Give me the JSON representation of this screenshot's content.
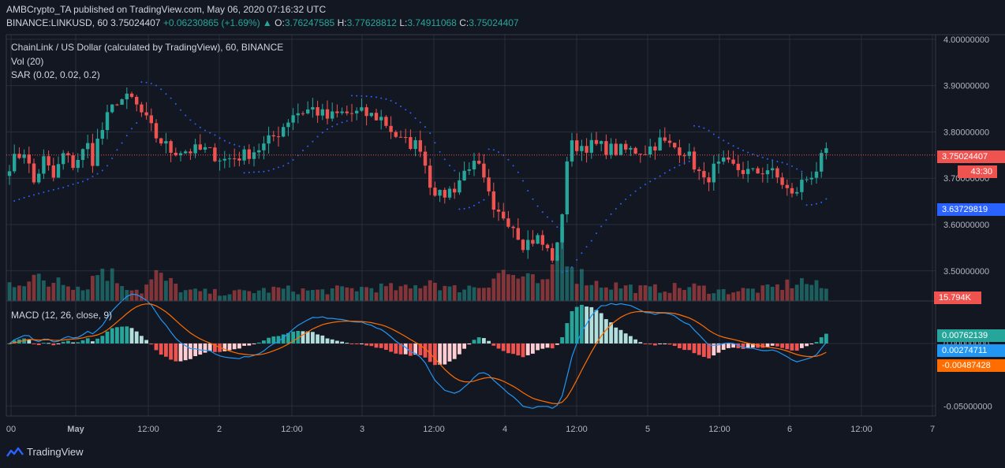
{
  "header": {
    "published": "AMBCrypto_TA published on TradingView.com, May 06, 2020 07:16:32 UTC",
    "symbol": "BINANCE:LINKUSD, 60",
    "last": "3.75024407",
    "change": "+0.06230865 (+1.69%)",
    "o_label": "O:",
    "o": "3.76247585",
    "h_label": "H:",
    "h": "3.77628812",
    "l_label": "L:",
    "l": "3.74911068",
    "c_label": "C:",
    "c": "3.75024407"
  },
  "legend": {
    "title": "ChainLink / US Dollar (calculated by TradingView), 60, BINANCE",
    "vol": "Vol (20)",
    "sar": "SAR (0.02, 0.02, 0.2)",
    "macd": "MACD (12, 26, close, 9)"
  },
  "brand": "TradingView",
  "colors": {
    "up": "#26a69a",
    "down": "#ef5350",
    "macd": "#2196f3",
    "signal": "#ff6d00",
    "bg": "#131722",
    "grid": "#2a2e39"
  },
  "price_tags": {
    "last": "3.75024407",
    "countdown": "43:30",
    "sar": "3.63729819",
    "volume": "15.794K",
    "hist": "0.00762139",
    "macd": "0.00274711",
    "signal": "-0.00487428"
  },
  "chart_data": {
    "type": "candlestick",
    "interval": "60",
    "price_axis": {
      "ticks": [
        "4.00000000",
        "3.90000000",
        "3.80000000",
        "3.70000000",
        "3.60000000",
        "3.50000000"
      ],
      "values": [
        4.0,
        3.9,
        3.8,
        3.7,
        3.6,
        3.5
      ],
      "range": [
        3.435,
        4.01
      ]
    },
    "macd_axis": {
      "ticks": [
        "0.00000000",
        "-0.05000000"
      ],
      "values": [
        0,
        -0.05
      ],
      "range": [
        -0.058,
        0.034
      ]
    },
    "time_axis": {
      "labels": [
        "00",
        "May",
        "12:00",
        "2",
        "12:00",
        "3",
        "12:00",
        "4",
        "12:00",
        "5",
        "12:00",
        "6",
        "12:00",
        "7"
      ]
    },
    "price_keypoints": [
      [
        0,
        3.73
      ],
      [
        3,
        3.76
      ],
      [
        5,
        3.69
      ],
      [
        7,
        3.74
      ],
      [
        9,
        3.7
      ],
      [
        11,
        3.75
      ],
      [
        13,
        3.73
      ],
      [
        16,
        3.77
      ],
      [
        17,
        3.74
      ],
      [
        18,
        3.78
      ],
      [
        20,
        3.83
      ],
      [
        22,
        3.87
      ],
      [
        25,
        3.87
      ],
      [
        27,
        3.84
      ],
      [
        30,
        3.79
      ],
      [
        33,
        3.76
      ],
      [
        36,
        3.76
      ],
      [
        40,
        3.76
      ],
      [
        44,
        3.74
      ],
      [
        48,
        3.75
      ],
      [
        52,
        3.77
      ],
      [
        55,
        3.8
      ],
      [
        58,
        3.84
      ],
      [
        62,
        3.85
      ],
      [
        65,
        3.83
      ],
      [
        68,
        3.84
      ],
      [
        72,
        3.84
      ],
      [
        76,
        3.83
      ],
      [
        80,
        3.78
      ],
      [
        84,
        3.77
      ],
      [
        86,
        3.69
      ],
      [
        88,
        3.66
      ],
      [
        91,
        3.68
      ],
      [
        94,
        3.73
      ],
      [
        96,
        3.72
      ],
      [
        98,
        3.66
      ],
      [
        99,
        3.62
      ],
      [
        101,
        3.62
      ],
      [
        103,
        3.6
      ],
      [
        105,
        3.56
      ],
      [
        108,
        3.57
      ],
      [
        111,
        3.53
      ],
      [
        112,
        3.55
      ],
      [
        113,
        3.63
      ],
      [
        114,
        3.74
      ],
      [
        115,
        3.77
      ],
      [
        117,
        3.77
      ],
      [
        120,
        3.77
      ],
      [
        124,
        3.76
      ],
      [
        127,
        3.76
      ],
      [
        130,
        3.76
      ],
      [
        133,
        3.78
      ],
      [
        135,
        3.77
      ],
      [
        138,
        3.76
      ],
      [
        140,
        3.73
      ],
      [
        142,
        3.69
      ],
      [
        144,
        3.72
      ],
      [
        146,
        3.73
      ],
      [
        149,
        3.72
      ],
      [
        152,
        3.71
      ],
      [
        155,
        3.72
      ],
      [
        158,
        3.69
      ],
      [
        160,
        3.66
      ],
      [
        162,
        3.69
      ],
      [
        164,
        3.71
      ],
      [
        165,
        3.72
      ],
      [
        166,
        3.74
      ],
      [
        167,
        3.75
      ]
    ],
    "vol_keypoints": [
      [
        0,
        0.9
      ],
      [
        5,
        1.2
      ],
      [
        8,
        0.8
      ],
      [
        10,
        1.3
      ],
      [
        15,
        0.6
      ],
      [
        19,
        1.7
      ],
      [
        23,
        0.9
      ],
      [
        27,
        0.5
      ],
      [
        30,
        1.3
      ],
      [
        36,
        0.5
      ],
      [
        45,
        0.4
      ],
      [
        55,
        0.6
      ],
      [
        63,
        0.5
      ],
      [
        75,
        0.7
      ],
      [
        82,
        0.6
      ],
      [
        86,
        1.1
      ],
      [
        90,
        0.6
      ],
      [
        97,
        0.8
      ],
      [
        100,
        1.5
      ],
      [
        104,
        1.2
      ],
      [
        110,
        0.8
      ],
      [
        113,
        3.4
      ],
      [
        116,
        1.4
      ],
      [
        120,
        0.9
      ],
      [
        130,
        0.6
      ],
      [
        140,
        0.7
      ],
      [
        146,
        0.5
      ],
      [
        155,
        0.6
      ],
      [
        162,
        1.0
      ],
      [
        167,
        0.6
      ]
    ],
    "macd": {
      "series": [
        {
          "name": "MACD"
        },
        {
          "name": "Signal"
        },
        {
          "name": "Histogram"
        }
      ]
    },
    "sar": {
      "name": "SAR"
    }
  }
}
